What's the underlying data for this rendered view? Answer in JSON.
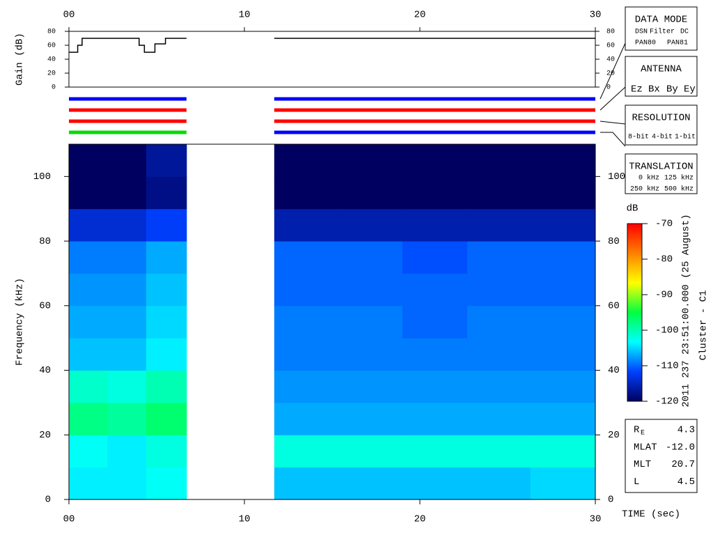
{
  "chart_data": [
    {
      "type": "line",
      "ylabel": "Gain (dB)",
      "xlim": [
        0,
        30
      ],
      "xticks": [
        {
          "value": 0,
          "label": "00"
        },
        10,
        20,
        30
      ],
      "ylim": [
        0,
        80
      ],
      "yticks": [
        0,
        20,
        40,
        60,
        80
      ],
      "x": [
        0,
        0.5,
        0.5,
        0.75,
        0.75,
        4.0,
        4.0,
        4.3,
        4.3,
        4.9,
        4.9,
        5.5,
        5.5,
        6.7,
        9,
        11.7,
        30
      ],
      "values": [
        50,
        50,
        60,
        60,
        70,
        70,
        60,
        60,
        50,
        50,
        62,
        62,
        70,
        70,
        null,
        70,
        70
      ],
      "color": "#000000"
    },
    {
      "type": "timeline",
      "xlim": [
        0,
        30
      ],
      "rows": [
        {
          "segments": [
            {
              "start": 0,
              "end": 6.7,
              "color": "#0000ff"
            },
            {
              "start": 11.7,
              "end": 30,
              "color": "#0000ff"
            }
          ]
        },
        {
          "segments": [
            {
              "start": 0,
              "end": 6.7,
              "color": "#ff0000"
            },
            {
              "start": 11.7,
              "end": 30,
              "color": "#ff0000"
            }
          ]
        },
        {
          "segments": [
            {
              "start": 0,
              "end": 6.7,
              "color": "#ff0000"
            },
            {
              "start": 11.7,
              "end": 30,
              "color": "#ff0000"
            }
          ]
        },
        {
          "segments": [
            {
              "start": 0,
              "end": 6.7,
              "color": "#00dd00"
            },
            {
              "start": 11.7,
              "end": 30,
              "color": "#0000ff"
            }
          ]
        }
      ]
    },
    {
      "type": "heatmap",
      "xlabel": "TIME (sec)",
      "ylabel": "Frequency (kHz)",
      "xlim": [
        0,
        30
      ],
      "xticks": [
        {
          "value": 0,
          "label": "00"
        },
        10,
        20,
        30
      ],
      "ylim": [
        0,
        110
      ],
      "yticks": [
        0,
        20,
        40,
        60,
        80,
        100
      ],
      "x_edges": [
        0,
        2.2,
        4.4,
        6.7,
        11.7,
        15.4,
        19.0,
        22.7,
        26.3,
        30
      ],
      "y_edges": [
        0,
        10,
        20,
        30,
        40,
        50,
        60,
        70,
        80,
        90,
        100,
        110
      ],
      "values": [
        [
          -104,
          -104,
          -103,
          null,
          -106,
          -106,
          -106,
          -106,
          -105
        ],
        [
          -103,
          -104,
          -102,
          null,
          -102,
          -102,
          -102,
          -102,
          -102
        ],
        [
          -98,
          -99,
          -97,
          null,
          -107,
          -107,
          -107,
          -107,
          -107
        ],
        [
          -101,
          -102,
          -100,
          null,
          -108,
          -108,
          -108,
          -108,
          -108
        ],
        [
          -106,
          -106,
          -104,
          null,
          -109,
          -109,
          -109,
          -109,
          -109
        ],
        [
          -107,
          -107,
          -105,
          null,
          -109,
          -109,
          -110,
          -109,
          -109
        ],
        [
          -108,
          -108,
          -106,
          null,
          -110,
          -110,
          -110,
          -110,
          -110
        ],
        [
          -109,
          -109,
          -107,
          null,
          -110,
          -110,
          -111,
          -110,
          -110
        ],
        [
          -114,
          -114,
          -112,
          null,
          -116,
          -116,
          -116,
          -116,
          -116
        ],
        [
          -120,
          -120,
          -118,
          null,
          -120,
          -120,
          -120,
          -120,
          -120
        ],
        [
          -120,
          -120,
          -117,
          null,
          -120,
          -120,
          -120,
          -120,
          -120
        ]
      ],
      "colorbar": {
        "label": "dB",
        "clim": [
          -120,
          -70
        ],
        "ticks": [
          -120,
          -110,
          -100,
          -90,
          -80,
          -70
        ],
        "colorscale": [
          "#000060",
          "#0040ff",
          "#00ffff",
          "#00ff40",
          "#ffff00",
          "#ff8000",
          "#ff0000"
        ]
      },
      "side_labels": [
        "2011 237 23:51:00.000 (25 August)",
        "Cluster - C1"
      ]
    }
  ],
  "legend_boxes": [
    {
      "title": "DATA MODE",
      "items": [
        {
          "text": "DSN",
          "color": "#ff0000"
        },
        {
          "text": "Filter",
          "color": "#00cc00"
        },
        {
          "text": "DC",
          "color": "#0000ff"
        },
        {
          "text": "PAN80",
          "color": "#000000"
        },
        {
          "text": "PAN81",
          "color": "#00cccc"
        }
      ]
    },
    {
      "title": "ANTENNA",
      "items": [
        {
          "text": "Ez",
          "color": "#ff0000"
        },
        {
          "text": "Bx",
          "color": "#00cc00"
        },
        {
          "text": "By",
          "color": "#0000ff"
        },
        {
          "text": "Ey",
          "color": "#000000"
        }
      ]
    },
    {
      "title": "RESOLUTION",
      "items": [
        {
          "text": "8-bit",
          "color": "#ff0000"
        },
        {
          "text": "4-bit",
          "color": "#00cc00"
        },
        {
          "text": "1-bit",
          "color": "#0000ff"
        }
      ]
    },
    {
      "title": "TRANSLATION",
      "items": [
        {
          "text": "0 kHz",
          "color": "#ff0000"
        },
        {
          "text": "125 kHz",
          "color": "#00cc00"
        },
        {
          "text": "250 kHz",
          "color": "#0000ff"
        },
        {
          "text": "500 kHz",
          "color": "#000000"
        }
      ]
    }
  ],
  "info_table": {
    "rows": [
      {
        "label": "R",
        "sub": "E",
        "value": "4.3"
      },
      {
        "label": "MLAT",
        "value": "-12.0"
      },
      {
        "label": "MLT",
        "value": "20.7"
      },
      {
        "label": "L",
        "value": "4.5"
      }
    ]
  }
}
